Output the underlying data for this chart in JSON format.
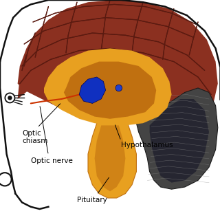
{
  "background_color": "#ffffff",
  "labels": {
    "optic_chiasm": "Optic\nchiasm",
    "optic_nerve": "Optic nerve",
    "hypothalamus": "Hypothalamus",
    "pituitary": "Pituitary"
  },
  "label_fontsize": 7.5,
  "colors": {
    "head_outline": "#111111",
    "cerebrum_dark": "#5a1a10",
    "cerebrum_mid": "#8b3020",
    "cerebrum_light": "#a84030",
    "inner_orange_light": "#e8a020",
    "inner_orange_dark": "#c07010",
    "inner_orange_mid": "#d49020",
    "cerebellum_dark": "#2a2a2a",
    "cerebellum_mid": "#444444",
    "cerebellum_light": "#666666",
    "blue_main": "#1030c0",
    "blue_small": "#2040cc",
    "red_tract": "#cc3300",
    "eye_color": "#111111",
    "stem_orange": "#d08010",
    "stem_light": "#e09020"
  }
}
